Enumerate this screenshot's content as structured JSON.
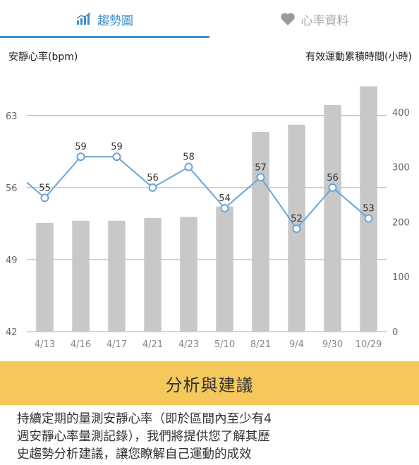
{
  "tabs": [
    {
      "label": "趨勢圖",
      "icon": "bar-chart-icon",
      "active": true
    },
    {
      "label": "心率資料",
      "icon": "heart-icon",
      "active": false
    }
  ],
  "colors": {
    "accent": "#3d8fce",
    "bar": "#c8c8c8",
    "line": "#6aa5d8",
    "banner": "#f5c85c"
  },
  "chart_data": {
    "type": "bar+line",
    "categories": [
      "4/13",
      "4/16",
      "4/17",
      "4/21",
      "4/23",
      "5/10",
      "8/21",
      "9/4",
      "9/30",
      "10/29"
    ],
    "left_axis": {
      "title": "安靜心率(bpm)",
      "ticks": [
        42,
        49,
        56,
        63
      ],
      "range": [
        42,
        66
      ]
    },
    "right_axis": {
      "title": "有效運動累積時間(小時)",
      "ticks": [
        0,
        100,
        200,
        300,
        400
      ],
      "range": [
        0,
        450
      ]
    },
    "bars": {
      "values": [
        198,
        202,
        202,
        207,
        209,
        228,
        364,
        377,
        413,
        447
      ]
    },
    "line": {
      "values": [
        55,
        59,
        59,
        56,
        58,
        54,
        57,
        52,
        56,
        53
      ],
      "start_value": 56.5
    },
    "grid": true
  },
  "section": {
    "title": "分析與建議",
    "lines": [
      "持續定期的量測安靜心率（即於區間內至少有4",
      "週安靜心率量測記錄），我們將提供您了解其歷",
      "史趨勢分析建議，讓您瞭解自己運動的成效"
    ]
  }
}
